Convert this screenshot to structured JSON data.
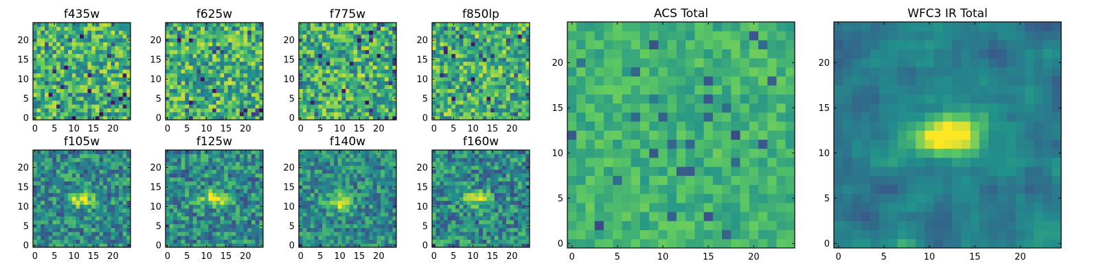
{
  "colormap": [
    "#440154",
    "#3b528b",
    "#21918c",
    "#5ec962",
    "#fde725"
  ],
  "chart_data": [
    {
      "type": "heatmap",
      "title": "f435w",
      "grid_size": 25,
      "xlim": [
        0,
        24
      ],
      "ylim": [
        0,
        24
      ],
      "xticks": [
        0,
        5,
        10,
        15,
        20
      ],
      "yticks": [
        0,
        5,
        10,
        15,
        20
      ],
      "pattern": "noise",
      "contrast": 0.95,
      "bright_spot": null
    },
    {
      "type": "heatmap",
      "title": "f625w",
      "grid_size": 25,
      "xlim": [
        0,
        24
      ],
      "ylim": [
        0,
        24
      ],
      "xticks": [
        0,
        5,
        10,
        15,
        20
      ],
      "yticks": [
        0,
        5,
        10,
        15,
        20
      ],
      "pattern": "noise",
      "contrast": 0.95,
      "bright_spot": null
    },
    {
      "type": "heatmap",
      "title": "f775w",
      "grid_size": 25,
      "xlim": [
        0,
        24
      ],
      "ylim": [
        0,
        24
      ],
      "xticks": [
        0,
        5,
        10,
        15,
        20
      ],
      "yticks": [
        0,
        5,
        10,
        15,
        20
      ],
      "pattern": "noise",
      "contrast": 0.95,
      "bright_spot": null
    },
    {
      "type": "heatmap",
      "title": "f850lp",
      "grid_size": 25,
      "xlim": [
        0,
        24
      ],
      "ylim": [
        0,
        24
      ],
      "xticks": [
        0,
        5,
        10,
        15,
        20
      ],
      "yticks": [
        0,
        5,
        10,
        15,
        20
      ],
      "pattern": "noise",
      "contrast": 0.95,
      "bright_spot": null
    },
    {
      "type": "heatmap",
      "title": "f105w",
      "grid_size": 25,
      "xlim": [
        0,
        24
      ],
      "ylim": [
        0,
        24
      ],
      "xticks": [
        0,
        5,
        10,
        15,
        20
      ],
      "yticks": [
        0,
        5,
        10,
        15,
        20
      ],
      "pattern": "source",
      "contrast": 0.9,
      "bright_spot": {
        "x": 12,
        "y": 12
      }
    },
    {
      "type": "heatmap",
      "title": "f125w",
      "grid_size": 25,
      "xlim": [
        0,
        24
      ],
      "ylim": [
        0,
        24
      ],
      "xticks": [
        0,
        5,
        10,
        15,
        20
      ],
      "yticks": [
        0,
        5,
        10,
        15,
        20
      ],
      "pattern": "source",
      "contrast": 0.9,
      "bright_spot": {
        "x": 12,
        "y": 12
      }
    },
    {
      "type": "heatmap",
      "title": "f140w",
      "grid_size": 25,
      "xlim": [
        0,
        24
      ],
      "ylim": [
        0,
        24
      ],
      "xticks": [
        0,
        5,
        10,
        15,
        20
      ],
      "yticks": [
        0,
        5,
        10,
        15,
        20
      ],
      "pattern": "source",
      "contrast": 0.8,
      "bright_spot": {
        "x": 10,
        "y": 11
      }
    },
    {
      "type": "heatmap",
      "title": "f160w",
      "grid_size": 25,
      "xlim": [
        0,
        24
      ],
      "ylim": [
        0,
        24
      ],
      "xticks": [
        0,
        5,
        10,
        15,
        20
      ],
      "yticks": [
        0,
        5,
        10,
        15,
        20
      ],
      "pattern": "source",
      "contrast": 0.9,
      "bright_spot": {
        "x": 11,
        "y": 12
      }
    },
    {
      "type": "heatmap",
      "title": "ACS Total",
      "grid_size": 25,
      "xlim": [
        0,
        24
      ],
      "ylim": [
        0,
        24
      ],
      "xticks": [
        0,
        5,
        10,
        15,
        20
      ],
      "yticks": [
        0,
        5,
        10,
        15,
        20
      ],
      "pattern": "noise-bright",
      "contrast": 0.55,
      "bright_spot": null
    },
    {
      "type": "heatmap",
      "title": "WFC3 IR Total",
      "grid_size": 25,
      "xlim": [
        0,
        24
      ],
      "ylim": [
        0,
        24
      ],
      "xticks": [
        0,
        5,
        10,
        15,
        20
      ],
      "yticks": [
        0,
        5,
        10,
        15,
        20
      ],
      "pattern": "source-smooth",
      "contrast": 1.0,
      "bright_spot": {
        "x": 12,
        "y": 12
      }
    }
  ]
}
